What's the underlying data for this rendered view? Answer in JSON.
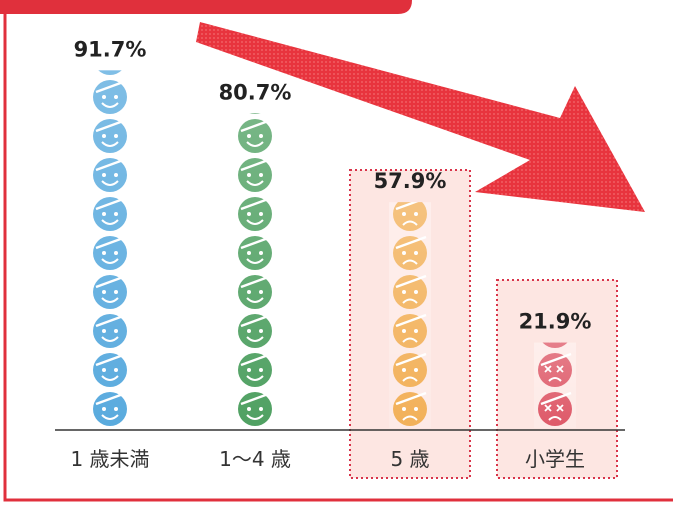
{
  "chart_data": {
    "type": "pictograph",
    "categories": [
      "1 歳未満",
      "1～4 歳",
      "5 歳",
      "小学生"
    ],
    "values": [
      91.7,
      80.7,
      57.9,
      21.9
    ],
    "value_labels": [
      "91.7%",
      "80.7%",
      "57.9%",
      "21.9%"
    ],
    "colors": [
      "#3b9bd8",
      "#2f8f45",
      "#f0a23a",
      "#d83a4c"
    ]
  }
}
